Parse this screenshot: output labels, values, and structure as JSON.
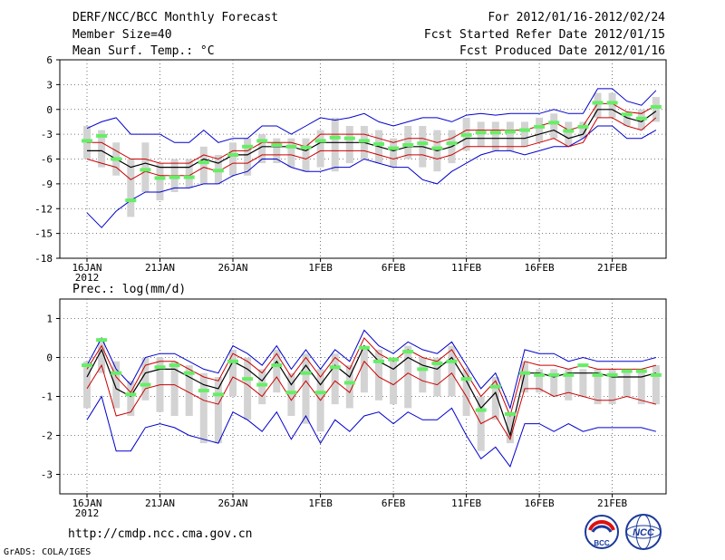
{
  "header": {
    "title": "DERF/NCC/BCC Monthly Forecast",
    "member_size": "Member Size=40",
    "variable": "Mean Surf. Temp.: °C",
    "period": "For 2012/01/16-2012/02/24",
    "start_date": "Fcst Started Refer Date 2012/01/15",
    "produced_date": "Fcst Produced Date 2012/01/16"
  },
  "footer": {
    "url": "http://cmdp.ncc.cma.gov.cn",
    "credit": "GrADS: COLA/IGES",
    "logo_left_text": "BCC",
    "logo_right_text": "NCC"
  },
  "colors": {
    "ensemble_mean": "#000000",
    "std_band": "#cc0000",
    "spread": "#0000cc",
    "members_box": "#d3d3d3",
    "observed": "#66ee66"
  },
  "chart_data": [
    {
      "type": "line",
      "title": "Mean Surf. Temp.: °C",
      "ylabel": "",
      "ylim": [
        -18,
        6
      ],
      "yticks": [
        6,
        3,
        0,
        -3,
        -6,
        -9,
        -12,
        -15,
        -18
      ],
      "xticks": [
        {
          "day": 1,
          "label": "16JAN",
          "sub": "2012"
        },
        {
          "day": 6,
          "label": "21JAN"
        },
        {
          "day": 11,
          "label": "26JAN"
        },
        {
          "day": 17,
          "label": "1FEB"
        },
        {
          "day": 22,
          "label": "6FEB"
        },
        {
          "day": 27,
          "label": "11FEB"
        },
        {
          "day": 32,
          "label": "16FEB"
        },
        {
          "day": 37,
          "label": "21FEB"
        }
      ],
      "days": 40,
      "series": [
        {
          "name": "spread-max",
          "values": [
            -2.3,
            -1.5,
            -1,
            -3,
            -3,
            -3,
            -4,
            -4,
            -2.5,
            -4,
            -3.5,
            -3.5,
            -2,
            -2,
            -3,
            -2,
            -1,
            -1.3,
            -1,
            -0.5,
            -1.5,
            -2,
            -1.5,
            -1,
            -1,
            -1.5,
            -0.7,
            -0.5,
            -0.7,
            -0.5,
            -0.5,
            -0.5,
            0,
            -0.5,
            -0.5,
            2.5,
            2.5,
            1,
            0.5,
            2.3
          ]
        },
        {
          "name": "std-upper",
          "values": [
            -4,
            -4,
            -5,
            -6,
            -6,
            -6.5,
            -6.5,
            -6.5,
            -5.5,
            -6,
            -5,
            -5,
            -4,
            -4,
            -4,
            -4.5,
            -3,
            -3,
            -3,
            -3,
            -3.5,
            -4,
            -3.5,
            -3.5,
            -4,
            -3.5,
            -2.5,
            -2.5,
            -2.5,
            -2.5,
            -2.5,
            -2,
            -1.5,
            -2.5,
            -2,
            0.7,
            0.7,
            -0.3,
            -0.5,
            0.5
          ]
        },
        {
          "name": "ensemble-mean",
          "values": [
            -5,
            -5,
            -6,
            -7,
            -6.5,
            -7,
            -7,
            -7,
            -6,
            -6.5,
            -5.5,
            -5.5,
            -4.5,
            -4.5,
            -4.5,
            -5,
            -4,
            -4,
            -4,
            -4,
            -4.5,
            -5,
            -4.5,
            -4.5,
            -5,
            -4.5,
            -3.5,
            -3.5,
            -3.5,
            -3.5,
            -3.5,
            -3,
            -2.5,
            -3.5,
            -3,
            0,
            0,
            -1,
            -1.5,
            -0.2
          ]
        },
        {
          "name": "std-lower",
          "values": [
            -6,
            -6.5,
            -7,
            -8.5,
            -7.5,
            -8,
            -8,
            -8,
            -7,
            -7.5,
            -6.5,
            -6.5,
            -5.5,
            -5.5,
            -5.5,
            -6,
            -5,
            -5,
            -5,
            -5,
            -5.5,
            -6,
            -5.5,
            -5.5,
            -6,
            -5.5,
            -4.5,
            -4.5,
            -4.5,
            -4.5,
            -4.5,
            -4,
            -3.5,
            -4.5,
            -4,
            -1,
            -1,
            -2,
            -2.5,
            -1
          ]
        },
        {
          "name": "spread-min",
          "values": [
            -12.5,
            -14.3,
            -12.3,
            -11,
            -10,
            -10,
            -9.5,
            -9.5,
            -9,
            -9,
            -8,
            -7.5,
            -6,
            -6,
            -7,
            -7.5,
            -7.5,
            -7,
            -7,
            -6,
            -6.5,
            -7,
            -7,
            -8.5,
            -9,
            -7.5,
            -6.5,
            -5.5,
            -5,
            -5,
            -5.5,
            -5,
            -4.5,
            -4.5,
            -3.5,
            -2,
            -2,
            -3.5,
            -3.5,
            -2.5
          ]
        },
        {
          "name": "observed",
          "values": [
            -3.8,
            -3.2,
            -6,
            -11,
            -7.3,
            -8.3,
            -8.2,
            -8.2,
            -6.4,
            -7.4,
            -5.5,
            -4.5,
            -3.8,
            -4.3,
            -4.5,
            -4.6,
            -3.8,
            -3.4,
            -3.5,
            -3.8,
            -4.2,
            -4.7,
            -4.3,
            -4.1,
            -4.7,
            -4.1,
            -3.1,
            -2.8,
            -2.8,
            -2.7,
            -2.5,
            -2.1,
            -1.6,
            -2.6,
            -2.1,
            0.8,
            0.8,
            -0.6,
            -1.1,
            0.3
          ]
        }
      ],
      "boxes": [
        [
          -6,
          -2
        ],
        [
          -7,
          -2.5
        ],
        [
          -8,
          -4
        ],
        [
          -13,
          -6
        ],
        [
          -10,
          -4
        ],
        [
          -11,
          -6.5
        ],
        [
          -10,
          -6
        ],
        [
          -9.5,
          -6
        ],
        [
          -9,
          -4.5
        ],
        [
          -9,
          -5.5
        ],
        [
          -8,
          -4
        ],
        [
          -8,
          -3.5
        ],
        [
          -6.5,
          -3
        ],
        [
          -6.5,
          -3.5
        ],
        [
          -7,
          -3.5
        ],
        [
          -7.5,
          -3.5
        ],
        [
          -7,
          -2.5
        ],
        [
          -7.5,
          -1
        ],
        [
          -6.5,
          -2
        ],
        [
          -6,
          -2
        ],
        [
          -6.5,
          -2.5
        ],
        [
          -7,
          -3.5
        ],
        [
          -6,
          -2
        ],
        [
          -7,
          -2
        ],
        [
          -7.5,
          -2.5
        ],
        [
          -6.5,
          -2.5
        ],
        [
          -5,
          -1
        ],
        [
          -4.5,
          -1.5
        ],
        [
          -5,
          -1.5
        ],
        [
          -5,
          -1.5
        ],
        [
          -4.5,
          -1.5
        ],
        [
          -4,
          -1
        ],
        [
          -3.5,
          -0.5
        ],
        [
          -4.5,
          -1.5
        ],
        [
          -3.5,
          -1.5
        ],
        [
          -1,
          2
        ],
        [
          -1,
          2
        ],
        [
          -2,
          -0.5
        ],
        [
          -2.5,
          0
        ],
        [
          -1.5,
          1.5
        ]
      ]
    },
    {
      "type": "line",
      "title": "Prec.: log(mm/d)",
      "ylabel": "",
      "ylim": [
        -3.5,
        1.5
      ],
      "yticks": [
        1,
        0,
        -1,
        -2,
        -3
      ],
      "xticks": [
        {
          "day": 1,
          "label": "16JAN",
          "sub": "2012"
        },
        {
          "day": 6,
          "label": "21JAN"
        },
        {
          "day": 11,
          "label": "26JAN"
        },
        {
          "day": 17,
          "label": "1FEB"
        },
        {
          "day": 22,
          "label": "6FEB"
        },
        {
          "day": 27,
          "label": "11FEB"
        },
        {
          "day": 32,
          "label": "16FEB"
        },
        {
          "day": 37,
          "label": "21FEB"
        }
      ],
      "days": 40,
      "series": [
        {
          "name": "spread-max",
          "values": [
            -0.2,
            0.5,
            -0.3,
            -0.7,
            0,
            0.1,
            0.1,
            -0.1,
            -0.3,
            -0.4,
            0.3,
            0.1,
            -0.2,
            0.3,
            -0.3,
            0.2,
            -0.3,
            0.2,
            -0.1,
            0.7,
            0.3,
            0.1,
            0.4,
            0.2,
            0.1,
            0.4,
            -0.2,
            -0.8,
            -0.4,
            -1.3,
            0.2,
            0.1,
            0.1,
            -0.1,
            0,
            -0.1,
            -0.1,
            -0.1,
            -0.1,
            0
          ]
        },
        {
          "name": "std-upper",
          "values": [
            -0.3,
            0.3,
            -0.5,
            -0.9,
            -0.2,
            -0.1,
            -0.1,
            -0.3,
            -0.5,
            -0.6,
            0.1,
            -0.1,
            -0.4,
            0.1,
            -0.5,
            0,
            -0.5,
            0,
            -0.3,
            0.5,
            0.1,
            -0.1,
            0.2,
            0,
            -0.1,
            0.2,
            -0.4,
            -1,
            -0.6,
            -1.5,
            -0.1,
            -0.2,
            -0.2,
            -0.3,
            -0.2,
            -0.3,
            -0.3,
            -0.3,
            -0.3,
            -0.2
          ]
        },
        {
          "name": "ensemble-mean",
          "values": [
            -0.5,
            0.2,
            -0.8,
            -1,
            -0.4,
            -0.3,
            -0.3,
            -0.5,
            -0.7,
            -0.8,
            -0.1,
            -0.3,
            -0.6,
            -0.1,
            -0.7,
            -0.2,
            -0.7,
            -0.2,
            -0.5,
            0.3,
            -0.1,
            -0.3,
            0,
            -0.2,
            -0.3,
            0,
            -0.6,
            -1.3,
            -0.9,
            -2,
            -0.4,
            -0.4,
            -0.5,
            -0.4,
            -0.4,
            -0.4,
            -0.5,
            -0.5,
            -0.5,
            -0.4
          ]
        },
        {
          "name": "std-lower",
          "values": [
            -0.8,
            -0.2,
            -1.5,
            -1.4,
            -0.8,
            -0.7,
            -0.7,
            -0.9,
            -1.1,
            -1.2,
            -0.5,
            -0.7,
            -1,
            -0.5,
            -1.1,
            -0.6,
            -1.1,
            -0.6,
            -0.9,
            -0.1,
            -0.5,
            -0.7,
            -0.4,
            -0.6,
            -0.7,
            -0.4,
            -1,
            -1.7,
            -1.5,
            -2.1,
            -0.8,
            -0.8,
            -1,
            -0.9,
            -1,
            -1.1,
            -1.1,
            -1,
            -1.1,
            -1.2
          ]
        },
        {
          "name": "spread-min",
          "values": [
            -1.6,
            -1,
            -2.4,
            -2.4,
            -1.8,
            -1.7,
            -1.8,
            -2,
            -2.1,
            -2.2,
            -1.4,
            -1.6,
            -1.9,
            -1.4,
            -2.1,
            -1.5,
            -2.2,
            -1.6,
            -1.9,
            -1.5,
            -1.4,
            -1.7,
            -1.4,
            -1.6,
            -1.6,
            -1.3,
            -2,
            -2.6,
            -2.3,
            -2.8,
            -1.7,
            -1.7,
            -1.9,
            -1.7,
            -1.9,
            -1.8,
            -1.8,
            -1.8,
            -1.8,
            -1.9
          ]
        },
        {
          "name": "observed",
          "values": [
            -0.2,
            0.45,
            -0.4,
            -0.95,
            -0.7,
            -0.25,
            -0.2,
            -0.4,
            -0.85,
            -0.95,
            -0.1,
            -0.55,
            -0.7,
            -0.2,
            -0.9,
            -0.4,
            -0.9,
            -0.25,
            -0.65,
            0.25,
            -0.1,
            -0.05,
            0.15,
            -0.3,
            -0.15,
            -0.1,
            -0.55,
            -1.35,
            -0.75,
            -1.45,
            -0.4,
            -0.45,
            -0.45,
            -0.45,
            -0.2,
            -0.45,
            -0.45,
            -0.35,
            -0.35,
            -0.45
          ]
        },
        {
          "name": "box-bottom",
          "values": [
            -1.3,
            -0.4,
            -1.3,
            -1.5,
            -1.1,
            -1.4,
            -1.5,
            -1.5,
            -2.2,
            -2.2,
            -1,
            -1.6,
            -1.2,
            -0.9,
            -1.5,
            -1.7,
            -1.9,
            -1.2,
            -1.3,
            -0.9,
            -1.1,
            -1.2,
            -1.3,
            -0.9,
            -1,
            -1,
            -1.5,
            -2.4,
            -1.6,
            -2.2,
            -0.9,
            -0.9,
            -1,
            -1.1,
            -1,
            -1.2,
            -1.2,
            -1,
            -1.2,
            -1.2
          ]
        },
        {
          "name": "box-top",
          "values": [
            -0.1,
            0.4,
            -0.1,
            -0.6,
            0,
            0,
            -0.1,
            -0.2,
            -0.4,
            -0.5,
            0.2,
            0,
            -0.3,
            0.2,
            -0.4,
            0.1,
            -0.3,
            0.1,
            -0.2,
            0.3,
            0.2,
            0,
            0.3,
            0,
            0,
            0.3,
            -0.3,
            -1,
            -0.5,
            -1.4,
            -0.1,
            -0.3,
            -0.3,
            -0.3,
            -0.3,
            -0.3,
            -0.3,
            -0.3,
            -0.3,
            -0.2
          ]
        }
      ]
    }
  ]
}
